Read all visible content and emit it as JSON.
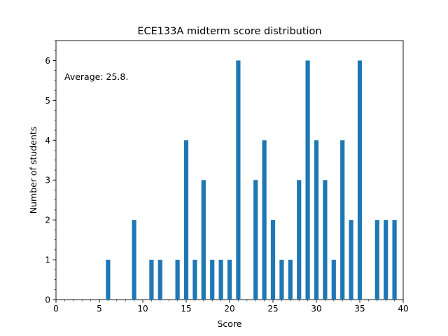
{
  "chart_data": {
    "type": "bar",
    "title": "ECE133A midterm score distribution",
    "xlabel": "Score",
    "ylabel": "Number of students",
    "annotation": "Average: 25.8.",
    "xlim": [
      0,
      40
    ],
    "ylim": [
      0,
      6.5
    ],
    "xticks": [
      0,
      5,
      10,
      15,
      20,
      25,
      30,
      35,
      40
    ],
    "yticks": [
      0,
      1,
      2,
      3,
      4,
      5,
      6
    ],
    "bar_color": "#1f77b4",
    "grid": false,
    "x": [
      6,
      9,
      11,
      12,
      14,
      15,
      16,
      17,
      18,
      19,
      20,
      21,
      23,
      24,
      25,
      26,
      27,
      28,
      29,
      30,
      31,
      32,
      33,
      34,
      35,
      37,
      38,
      39
    ],
    "values": [
      1,
      2,
      1,
      1,
      1,
      4,
      1,
      3,
      1,
      1,
      1,
      6,
      3,
      4,
      2,
      1,
      1,
      3,
      6,
      4,
      3,
      1,
      4,
      2,
      6,
      2,
      2,
      2
    ]
  }
}
